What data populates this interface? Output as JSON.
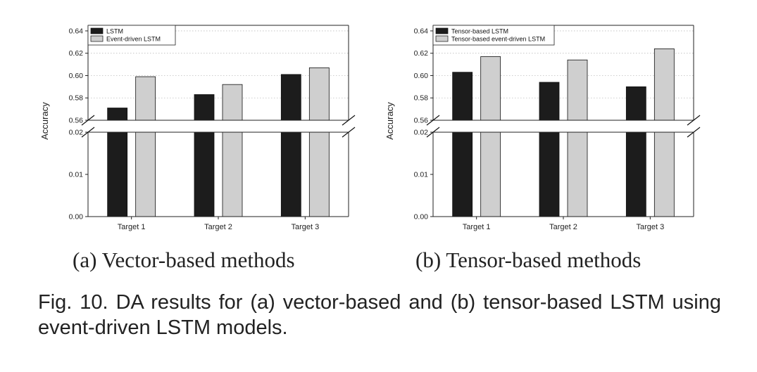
{
  "chart_data": [
    {
      "type": "bar",
      "categories": [
        "Target 1",
        "Target 2",
        "Target 3"
      ],
      "series": [
        {
          "name": "LSTM",
          "values": [
            0.571,
            0.583,
            0.601
          ],
          "color": "#1c1c1c"
        },
        {
          "name": "Event-driven LSTM",
          "values": [
            0.599,
            0.592,
            0.607
          ],
          "color": "#cfcfcf"
        }
      ],
      "ylabel": "Accuracy",
      "xlabel": "",
      "y_axis_break": {
        "lower_range": [
          0.0,
          0.02
        ],
        "upper_range": [
          0.56,
          0.645
        ]
      },
      "lower_ticks": [
        "0.00",
        "0.01",
        "0.02"
      ],
      "upper_ticks": [
        "0.56",
        "0.58",
        "0.60",
        "0.62",
        "0.64"
      ],
      "grid": "horizontal dotted (upper panel)",
      "legend_position": "top-left"
    },
    {
      "type": "bar",
      "categories": [
        "Target 1",
        "Target 2",
        "Target 3"
      ],
      "series": [
        {
          "name": "Tensor-based LSTM",
          "values": [
            0.603,
            0.594,
            0.59
          ],
          "color": "#1c1c1c"
        },
        {
          "name": "Tensor-based event-driven LSTM",
          "values": [
            0.617,
            0.614,
            0.624
          ],
          "color": "#cfcfcf"
        }
      ],
      "ylabel": "Accuracy",
      "xlabel": "",
      "y_axis_break": {
        "lower_range": [
          0.0,
          0.02
        ],
        "upper_range": [
          0.56,
          0.645
        ]
      },
      "lower_ticks": [
        "0.00",
        "0.01",
        "0.02"
      ],
      "upper_ticks": [
        "0.56",
        "0.58",
        "0.60",
        "0.62",
        "0.64"
      ],
      "grid": "horizontal dotted (upper panel)",
      "legend_position": "top-left"
    }
  ],
  "subcaptions": [
    "(a) Vector-based methods",
    "(b) Tensor-based methods"
  ],
  "caption": "Fig. 10. DA results for (a) vector-based and (b) tensor-based LSTM using event-driven LSTM models."
}
